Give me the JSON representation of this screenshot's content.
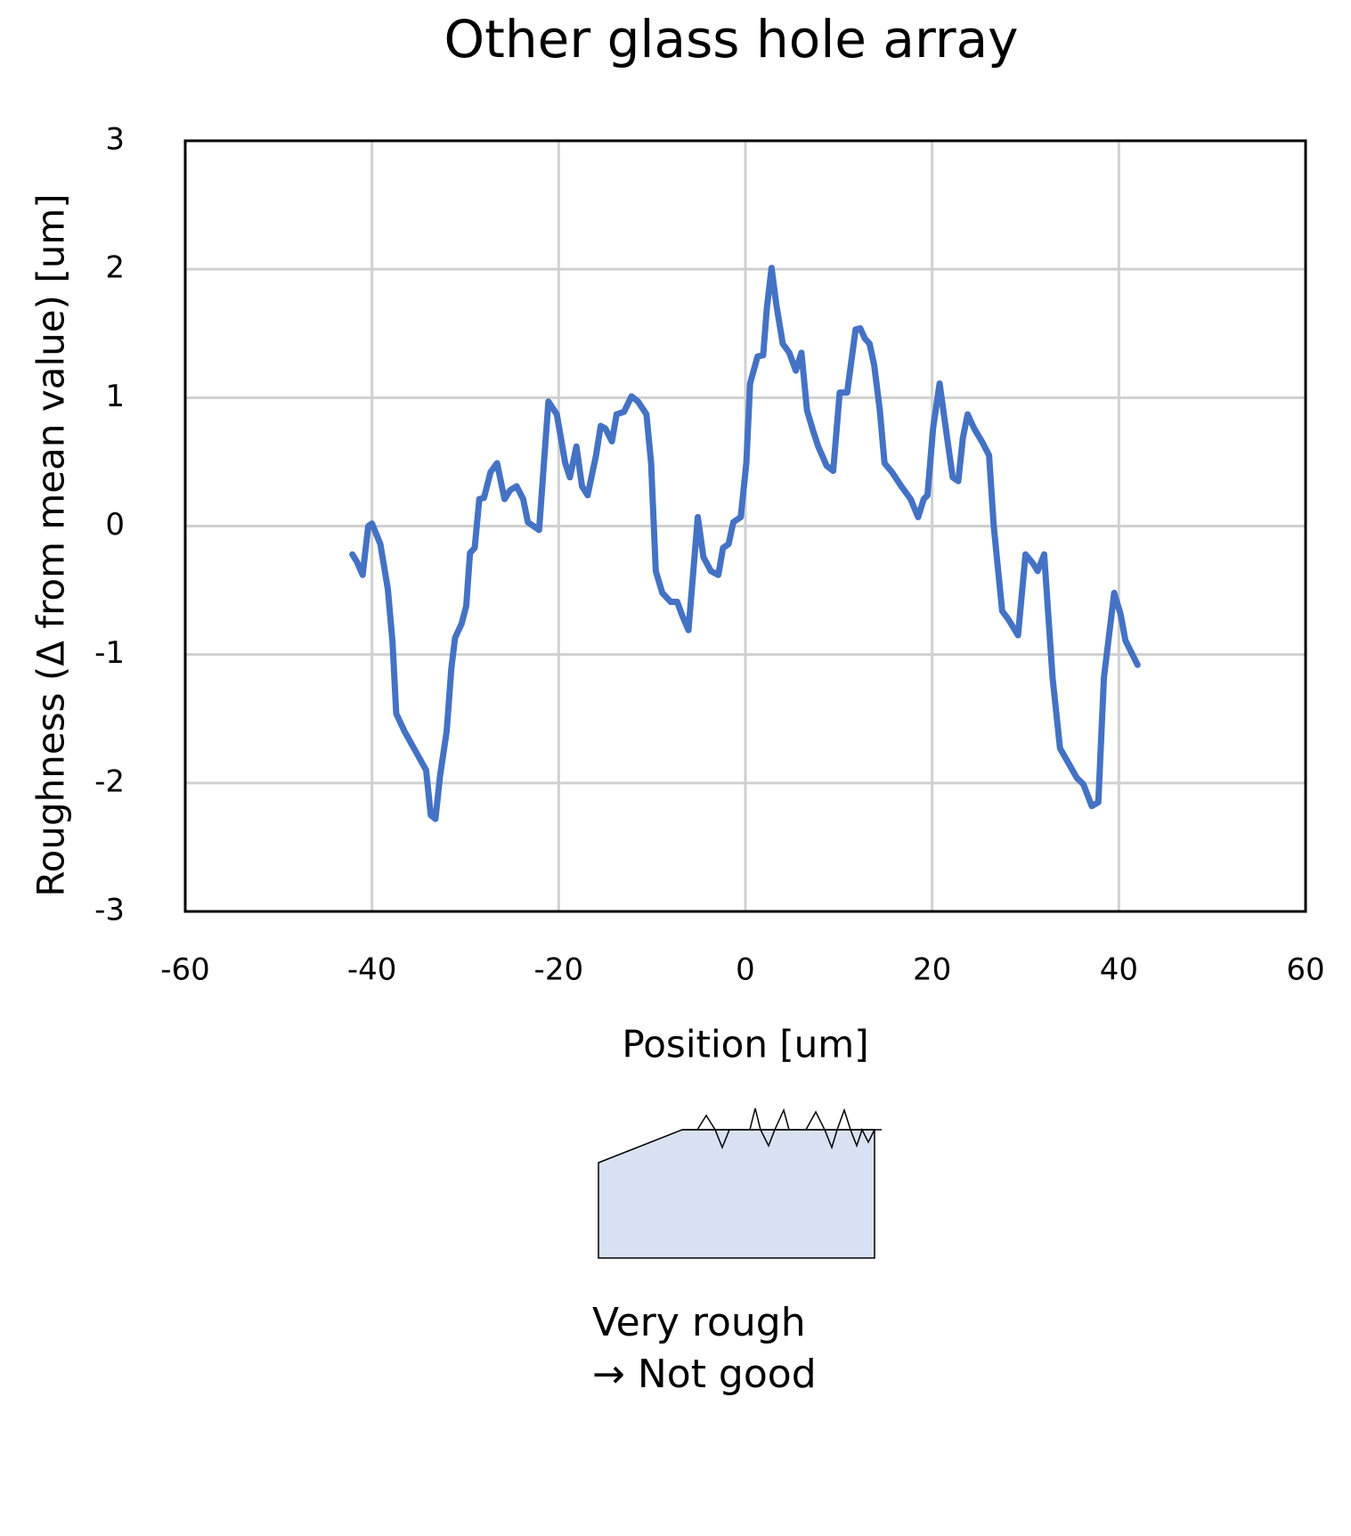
{
  "chart_data": {
    "type": "line",
    "title": "Other glass hole array",
    "x_label": "Position [um]",
    "y_label": "Roughness (Δ from mean value)  [um]",
    "xlim": [
      -60,
      60
    ],
    "xticks": [
      -60,
      -40,
      -20,
      0,
      20,
      40,
      60
    ],
    "ylim": [
      -3,
      3
    ],
    "yticks": [
      -3,
      -2,
      -1,
      0,
      1,
      2,
      3
    ],
    "grid": true,
    "series": [
      {
        "color": "#4472c4",
        "x": [
          -42.1,
          -41.6,
          -41.0,
          -40.4,
          -40.0,
          -39.1,
          -38.3,
          -37.8,
          -37.4,
          -36.5,
          -35.5,
          -34.2,
          -33.7,
          -33.2,
          -32.7,
          -32.0,
          -31.5,
          -31.1,
          -30.4,
          -29.9,
          -29.5,
          -29.0,
          -28.5,
          -28.0,
          -27.3,
          -26.6,
          -25.8,
          -25.2,
          -24.5,
          -23.8,
          -23.3,
          -22.7,
          -22.1,
          -21.1,
          -20.2,
          -19.3,
          -18.8,
          -18.1,
          -17.5,
          -16.9,
          -16.0,
          -15.5,
          -15.0,
          -14.3,
          -13.8,
          -13.0,
          -12.2,
          -11.5,
          -10.6,
          -10.1,
          -9.6,
          -8.9,
          -8.0,
          -7.3,
          -6.8,
          -6.1,
          -5.1,
          -4.5,
          -3.7,
          -2.9,
          -2.4,
          -1.8,
          -1.3,
          -0.5,
          0.1,
          0.5,
          1.3,
          1.9,
          2.3,
          2.8,
          3.3,
          4.0,
          4.7,
          5.4,
          6.0,
          6.6,
          7.3,
          7.8,
          8.7,
          9.4,
          10.1,
          10.9,
          11.8,
          12.3,
          12.8,
          13.3,
          13.8,
          14.4,
          14.9,
          15.7,
          16.7,
          17.7,
          18.5,
          19.1,
          19.5,
          20.1,
          20.8,
          21.6,
          22.2,
          22.8,
          23.3,
          23.8,
          24.5,
          25.4,
          26.1,
          26.6,
          27.5,
          28.2,
          29.2,
          30.0,
          30.8,
          31.3,
          32.0,
          32.9,
          33.7,
          34.8,
          35.5,
          36.2,
          37.1,
          37.8,
          38.4,
          39.5,
          40.2,
          40.7,
          42.0
        ],
        "values": [
          -0.22,
          -0.28,
          -0.38,
          0.0,
          0.02,
          -0.14,
          -0.49,
          -0.9,
          -1.46,
          -1.6,
          -1.73,
          -1.9,
          -2.25,
          -2.28,
          -1.94,
          -1.6,
          -1.11,
          -0.87,
          -0.76,
          -0.62,
          -0.21,
          -0.17,
          0.21,
          0.22,
          0.42,
          0.49,
          0.21,
          0.28,
          0.31,
          0.21,
          0.03,
          0.0,
          -0.03,
          0.97,
          0.87,
          0.49,
          0.38,
          0.62,
          0.31,
          0.24,
          0.55,
          0.78,
          0.76,
          0.66,
          0.87,
          0.89,
          1.01,
          0.97,
          0.87,
          0.49,
          -0.35,
          -0.52,
          -0.59,
          -0.59,
          -0.69,
          -0.81,
          0.07,
          -0.24,
          -0.35,
          -0.38,
          -0.17,
          -0.14,
          0.03,
          0.07,
          0.49,
          1.11,
          1.32,
          1.33,
          1.7,
          2.01,
          1.73,
          1.42,
          1.35,
          1.21,
          1.35,
          0.9,
          0.73,
          0.62,
          0.47,
          0.43,
          1.04,
          1.04,
          1.53,
          1.54,
          1.46,
          1.42,
          1.25,
          0.9,
          0.49,
          0.42,
          0.31,
          0.21,
          0.07,
          0.21,
          0.24,
          0.76,
          1.11,
          0.69,
          0.38,
          0.35,
          0.69,
          0.87,
          0.76,
          0.65,
          0.55,
          0.0,
          -0.66,
          -0.73,
          -0.85,
          -0.22,
          -0.29,
          -0.35,
          -0.22,
          -1.18,
          -1.73,
          -1.87,
          -1.96,
          -2.01,
          -2.18,
          -2.15,
          -1.18,
          -0.52,
          -0.69,
          -0.89,
          -1.08
        ]
      }
    ]
  },
  "caption_lines": [
    "Very rough",
    "→ Not good"
  ]
}
